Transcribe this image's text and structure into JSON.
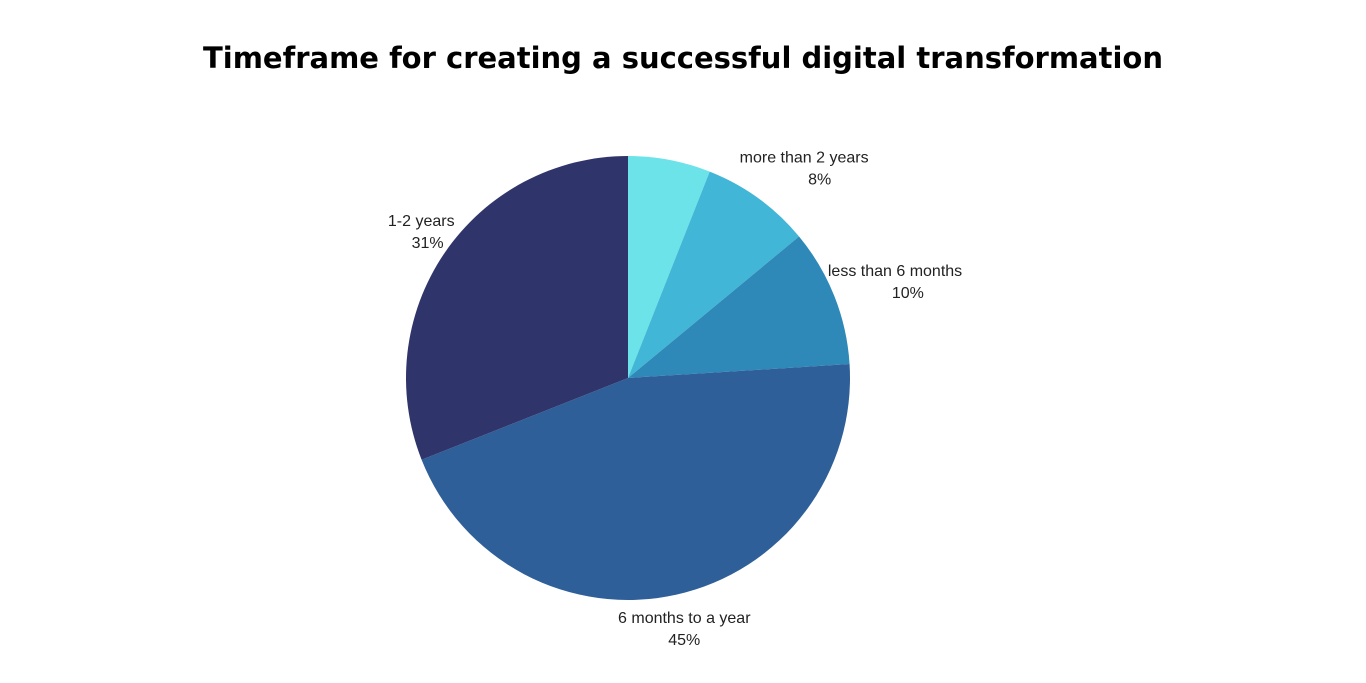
{
  "chart_data": {
    "type": "pie",
    "title": "Timeframe for creating a successful digital transformation",
    "categories": [
      null,
      "more than 2 years",
      "less than 6 months",
      "6 months to a year",
      "1-2 years"
    ],
    "values": [
      6,
      8,
      10,
      45,
      31
    ],
    "value_labels": [
      null,
      "8%",
      "10%",
      "45%",
      "31%"
    ],
    "colors": [
      "#6be3e8",
      "#42b6d6",
      "#2e88b8",
      "#2e5f98",
      "#2f356b"
    ]
  }
}
